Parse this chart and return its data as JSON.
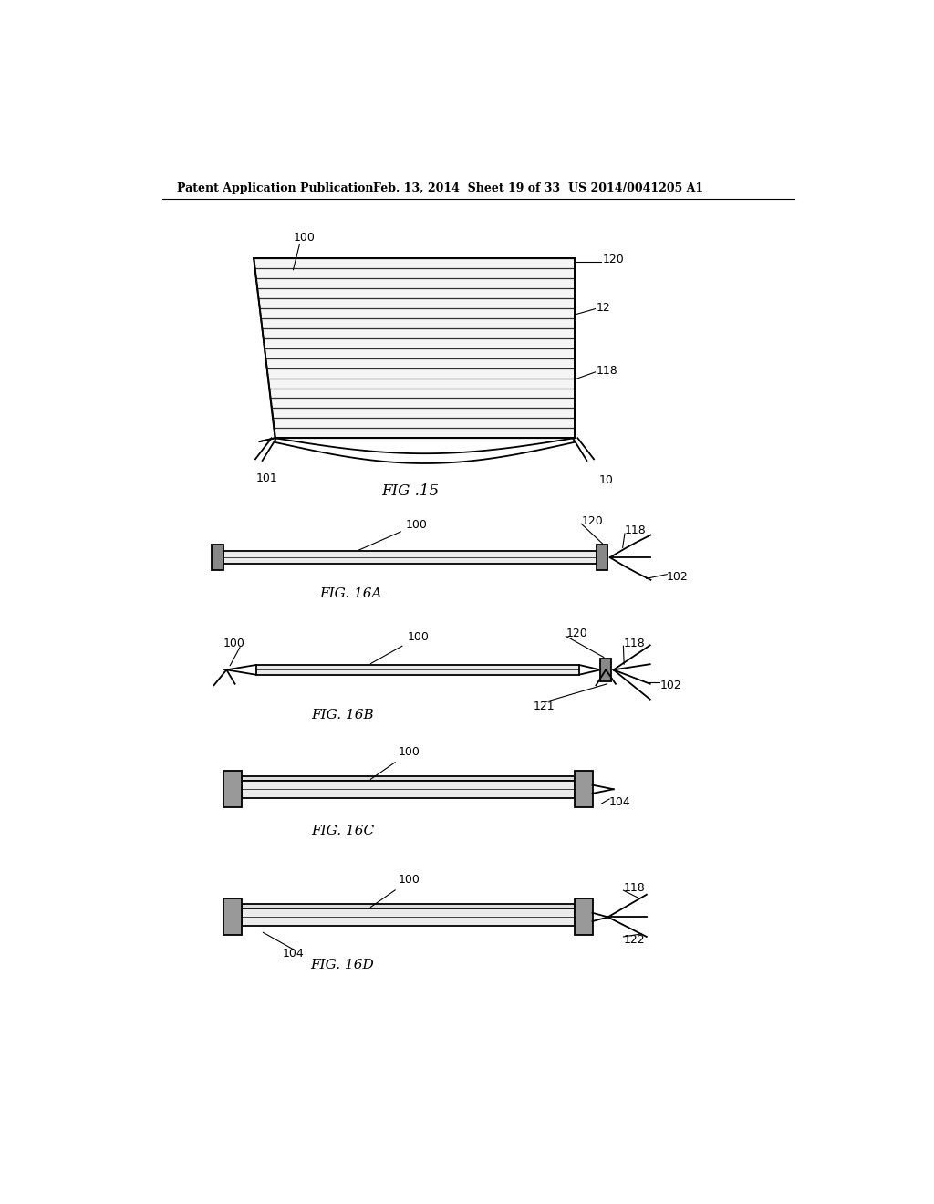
{
  "header_left": "Patent Application Publication",
  "header_mid": "Feb. 13, 2014  Sheet 19 of 33",
  "header_right": "US 2014/0041205 A1",
  "bg_color": "#ffffff",
  "line_color": "#000000",
  "fig15_label": "FIG .15",
  "fig16a_label": "FIG. 16A",
  "fig16b_label": "FIG. 16B",
  "fig16c_label": "FIG. 16C",
  "fig16d_label": "FIG. 16D"
}
